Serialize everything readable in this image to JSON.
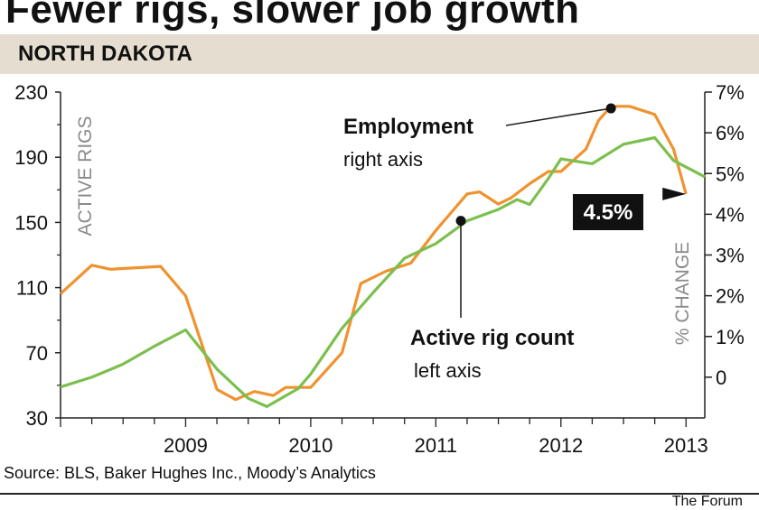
{
  "title": "Fewer rigs, slower job growth",
  "region": "NORTH DAKOTA",
  "source": "Source: BLS, Baker Hughes Inc., Moody’s Analytics",
  "credit": "The Forum",
  "colors": {
    "employment": "#f0922e",
    "rigs": "#7cbf4e",
    "band": "#e5ddd0",
    "axis_text_gray": "#8a8a8a"
  },
  "chart_data": {
    "type": "line",
    "left_axis": {
      "label": "ACTIVE RIGS",
      "ylim": [
        30,
        230
      ],
      "ticks": [
        "230",
        "190",
        "150",
        "110",
        "70",
        "30"
      ]
    },
    "right_axis": {
      "label": "% CHANGE",
      "ylim": [
        -1,
        7
      ],
      "ticks": [
        "7%",
        "6%",
        "5%",
        "4%",
        "3%",
        "2%",
        "1%",
        "0"
      ]
    },
    "x_ticks": [
      "2009",
      "2010",
      "2011",
      "2012",
      "2013"
    ],
    "series": [
      {
        "name": "Employment",
        "axis": "right",
        "color": "#f0922e",
        "points": [
          [
            2008.0,
            2.05
          ],
          [
            2008.25,
            2.75
          ],
          [
            2008.4,
            2.65
          ],
          [
            2008.8,
            2.72
          ],
          [
            2009.0,
            2.0
          ],
          [
            2009.25,
            -0.3
          ],
          [
            2009.4,
            -0.55
          ],
          [
            2009.55,
            -0.35
          ],
          [
            2009.7,
            -0.45
          ],
          [
            2009.8,
            -0.25
          ],
          [
            2010.0,
            -0.25
          ],
          [
            2010.25,
            0.6
          ],
          [
            2010.4,
            2.3
          ],
          [
            2010.6,
            2.6
          ],
          [
            2010.8,
            2.8
          ],
          [
            2011.0,
            3.6
          ],
          [
            2011.25,
            4.5
          ],
          [
            2011.35,
            4.55
          ],
          [
            2011.5,
            4.25
          ],
          [
            2011.6,
            4.4
          ],
          [
            2011.75,
            4.75
          ],
          [
            2011.9,
            5.05
          ],
          [
            2012.0,
            5.05
          ],
          [
            2012.2,
            5.6
          ],
          [
            2012.3,
            6.3
          ],
          [
            2012.4,
            6.65
          ],
          [
            2012.55,
            6.65
          ],
          [
            2012.75,
            6.45
          ],
          [
            2012.9,
            5.6
          ],
          [
            2013.0,
            4.5
          ]
        ]
      },
      {
        "name": "Active rig count",
        "axis": "left",
        "color": "#7cbf4e",
        "points": [
          [
            2008.0,
            49
          ],
          [
            2008.25,
            55
          ],
          [
            2008.5,
            63
          ],
          [
            2008.75,
            74
          ],
          [
            2009.0,
            84
          ],
          [
            2009.25,
            60
          ],
          [
            2009.5,
            42
          ],
          [
            2009.65,
            37
          ],
          [
            2009.9,
            48
          ],
          [
            2010.0,
            57
          ],
          [
            2010.25,
            85
          ],
          [
            2010.5,
            107
          ],
          [
            2010.75,
            128
          ],
          [
            2011.0,
            137
          ],
          [
            2011.25,
            151
          ],
          [
            2011.5,
            158
          ],
          [
            2011.65,
            164
          ],
          [
            2011.75,
            161
          ],
          [
            2011.9,
            177
          ],
          [
            2012.0,
            189
          ],
          [
            2012.25,
            186
          ],
          [
            2012.5,
            198
          ],
          [
            2012.75,
            202
          ],
          [
            2012.9,
            188
          ],
          [
            2013.15,
            178
          ]
        ]
      }
    ],
    "annotations": [
      {
        "text_bold": "Employment",
        "text": "right axis",
        "series": "Employment",
        "at": [
          2012.4,
          6.6
        ]
      },
      {
        "text_bold": "Active rig count",
        "text": "left axis",
        "series": "Active rig count",
        "at": [
          2011.2,
          151
        ]
      },
      {
        "label": "4.5%",
        "series": "Employment",
        "at": [
          2013.0,
          4.5
        ]
      }
    ]
  }
}
